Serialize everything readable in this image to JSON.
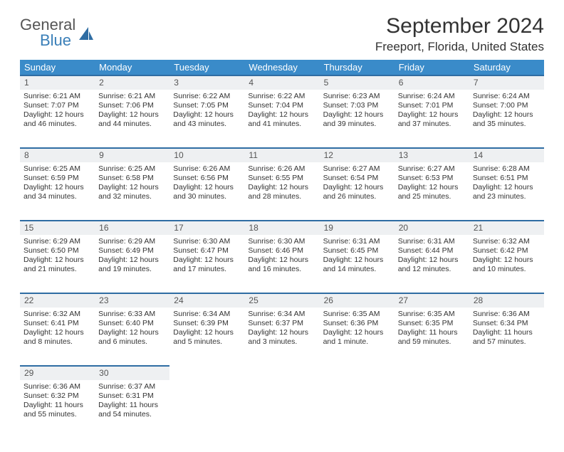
{
  "brand": {
    "part1": "General",
    "part2": "Blue"
  },
  "title": "September 2024",
  "location": "Freeport, Florida, United States",
  "dayHeaders": [
    "Sunday",
    "Monday",
    "Tuesday",
    "Wednesday",
    "Thursday",
    "Friday",
    "Saturday"
  ],
  "colors": {
    "header_bg": "#3a8bc9",
    "header_text": "#ffffff",
    "daynum_bg": "#eef0f2",
    "daynum_border": "#2f6da3",
    "text": "#333333",
    "brand_gray": "#555555",
    "brand_blue": "#3a7fb8"
  },
  "weeks": [
    [
      {
        "n": "1",
        "sr": "Sunrise: 6:21 AM",
        "ss": "Sunset: 7:07 PM",
        "d1": "Daylight: 12 hours",
        "d2": "and 46 minutes."
      },
      {
        "n": "2",
        "sr": "Sunrise: 6:21 AM",
        "ss": "Sunset: 7:06 PM",
        "d1": "Daylight: 12 hours",
        "d2": "and 44 minutes."
      },
      {
        "n": "3",
        "sr": "Sunrise: 6:22 AM",
        "ss": "Sunset: 7:05 PM",
        "d1": "Daylight: 12 hours",
        "d2": "and 43 minutes."
      },
      {
        "n": "4",
        "sr": "Sunrise: 6:22 AM",
        "ss": "Sunset: 7:04 PM",
        "d1": "Daylight: 12 hours",
        "d2": "and 41 minutes."
      },
      {
        "n": "5",
        "sr": "Sunrise: 6:23 AM",
        "ss": "Sunset: 7:03 PM",
        "d1": "Daylight: 12 hours",
        "d2": "and 39 minutes."
      },
      {
        "n": "6",
        "sr": "Sunrise: 6:24 AM",
        "ss": "Sunset: 7:01 PM",
        "d1": "Daylight: 12 hours",
        "d2": "and 37 minutes."
      },
      {
        "n": "7",
        "sr": "Sunrise: 6:24 AM",
        "ss": "Sunset: 7:00 PM",
        "d1": "Daylight: 12 hours",
        "d2": "and 35 minutes."
      }
    ],
    [
      {
        "n": "8",
        "sr": "Sunrise: 6:25 AM",
        "ss": "Sunset: 6:59 PM",
        "d1": "Daylight: 12 hours",
        "d2": "and 34 minutes."
      },
      {
        "n": "9",
        "sr": "Sunrise: 6:25 AM",
        "ss": "Sunset: 6:58 PM",
        "d1": "Daylight: 12 hours",
        "d2": "and 32 minutes."
      },
      {
        "n": "10",
        "sr": "Sunrise: 6:26 AM",
        "ss": "Sunset: 6:56 PM",
        "d1": "Daylight: 12 hours",
        "d2": "and 30 minutes."
      },
      {
        "n": "11",
        "sr": "Sunrise: 6:26 AM",
        "ss": "Sunset: 6:55 PM",
        "d1": "Daylight: 12 hours",
        "d2": "and 28 minutes."
      },
      {
        "n": "12",
        "sr": "Sunrise: 6:27 AM",
        "ss": "Sunset: 6:54 PM",
        "d1": "Daylight: 12 hours",
        "d2": "and 26 minutes."
      },
      {
        "n": "13",
        "sr": "Sunrise: 6:27 AM",
        "ss": "Sunset: 6:53 PM",
        "d1": "Daylight: 12 hours",
        "d2": "and 25 minutes."
      },
      {
        "n": "14",
        "sr": "Sunrise: 6:28 AM",
        "ss": "Sunset: 6:51 PM",
        "d1": "Daylight: 12 hours",
        "d2": "and 23 minutes."
      }
    ],
    [
      {
        "n": "15",
        "sr": "Sunrise: 6:29 AM",
        "ss": "Sunset: 6:50 PM",
        "d1": "Daylight: 12 hours",
        "d2": "and 21 minutes."
      },
      {
        "n": "16",
        "sr": "Sunrise: 6:29 AM",
        "ss": "Sunset: 6:49 PM",
        "d1": "Daylight: 12 hours",
        "d2": "and 19 minutes."
      },
      {
        "n": "17",
        "sr": "Sunrise: 6:30 AM",
        "ss": "Sunset: 6:47 PM",
        "d1": "Daylight: 12 hours",
        "d2": "and 17 minutes."
      },
      {
        "n": "18",
        "sr": "Sunrise: 6:30 AM",
        "ss": "Sunset: 6:46 PM",
        "d1": "Daylight: 12 hours",
        "d2": "and 16 minutes."
      },
      {
        "n": "19",
        "sr": "Sunrise: 6:31 AM",
        "ss": "Sunset: 6:45 PM",
        "d1": "Daylight: 12 hours",
        "d2": "and 14 minutes."
      },
      {
        "n": "20",
        "sr": "Sunrise: 6:31 AM",
        "ss": "Sunset: 6:44 PM",
        "d1": "Daylight: 12 hours",
        "d2": "and 12 minutes."
      },
      {
        "n": "21",
        "sr": "Sunrise: 6:32 AM",
        "ss": "Sunset: 6:42 PM",
        "d1": "Daylight: 12 hours",
        "d2": "and 10 minutes."
      }
    ],
    [
      {
        "n": "22",
        "sr": "Sunrise: 6:32 AM",
        "ss": "Sunset: 6:41 PM",
        "d1": "Daylight: 12 hours",
        "d2": "and 8 minutes."
      },
      {
        "n": "23",
        "sr": "Sunrise: 6:33 AM",
        "ss": "Sunset: 6:40 PM",
        "d1": "Daylight: 12 hours",
        "d2": "and 6 minutes."
      },
      {
        "n": "24",
        "sr": "Sunrise: 6:34 AM",
        "ss": "Sunset: 6:39 PM",
        "d1": "Daylight: 12 hours",
        "d2": "and 5 minutes."
      },
      {
        "n": "25",
        "sr": "Sunrise: 6:34 AM",
        "ss": "Sunset: 6:37 PM",
        "d1": "Daylight: 12 hours",
        "d2": "and 3 minutes."
      },
      {
        "n": "26",
        "sr": "Sunrise: 6:35 AM",
        "ss": "Sunset: 6:36 PM",
        "d1": "Daylight: 12 hours",
        "d2": "and 1 minute."
      },
      {
        "n": "27",
        "sr": "Sunrise: 6:35 AM",
        "ss": "Sunset: 6:35 PM",
        "d1": "Daylight: 11 hours",
        "d2": "and 59 minutes."
      },
      {
        "n": "28",
        "sr": "Sunrise: 6:36 AM",
        "ss": "Sunset: 6:34 PM",
        "d1": "Daylight: 11 hours",
        "d2": "and 57 minutes."
      }
    ],
    [
      {
        "n": "29",
        "sr": "Sunrise: 6:36 AM",
        "ss": "Sunset: 6:32 PM",
        "d1": "Daylight: 11 hours",
        "d2": "and 55 minutes."
      },
      {
        "n": "30",
        "sr": "Sunrise: 6:37 AM",
        "ss": "Sunset: 6:31 PM",
        "d1": "Daylight: 11 hours",
        "d2": "and 54 minutes."
      },
      null,
      null,
      null,
      null,
      null
    ]
  ]
}
